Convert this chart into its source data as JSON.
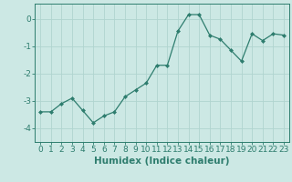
{
  "xlabel": "Humidex (Indice chaleur)",
  "ylabel": "",
  "x": [
    0,
    1,
    2,
    3,
    4,
    5,
    6,
    7,
    8,
    9,
    10,
    11,
    12,
    13,
    14,
    15,
    16,
    17,
    18,
    19,
    20,
    21,
    22,
    23
  ],
  "y": [
    -3.4,
    -3.4,
    -3.1,
    -2.9,
    -3.35,
    -3.8,
    -3.55,
    -3.4,
    -2.85,
    -2.6,
    -2.35,
    -1.7,
    -1.7,
    -0.45,
    0.15,
    0.15,
    -0.6,
    -0.75,
    -1.15,
    -1.55,
    -0.55,
    -0.8,
    -0.55,
    -0.6
  ],
  "line_color": "#2e7d6e",
  "marker": "D",
  "marker_size": 2.0,
  "bg_color": "#cce8e4",
  "grid_color": "#b0d4cf",
  "axis_bg": "#cce8e4",
  "ylim": [
    -4.5,
    0.55
  ],
  "xlim": [
    -0.5,
    23.5
  ],
  "yticks": [
    0,
    -1,
    -2,
    -3,
    -4
  ],
  "xticks": [
    0,
    1,
    2,
    3,
    4,
    5,
    6,
    7,
    8,
    9,
    10,
    11,
    12,
    13,
    14,
    15,
    16,
    17,
    18,
    19,
    20,
    21,
    22,
    23
  ],
  "xtick_labels": [
    "0",
    "1",
    "2",
    "3",
    "4",
    "5",
    "6",
    "7",
    "8",
    "9",
    "10",
    "11",
    "12",
    "13",
    "14",
    "15",
    "16",
    "17",
    "18",
    "19",
    "20",
    "21",
    "22",
    "23"
  ],
  "label_fontsize": 7.5,
  "tick_fontsize": 6.5
}
